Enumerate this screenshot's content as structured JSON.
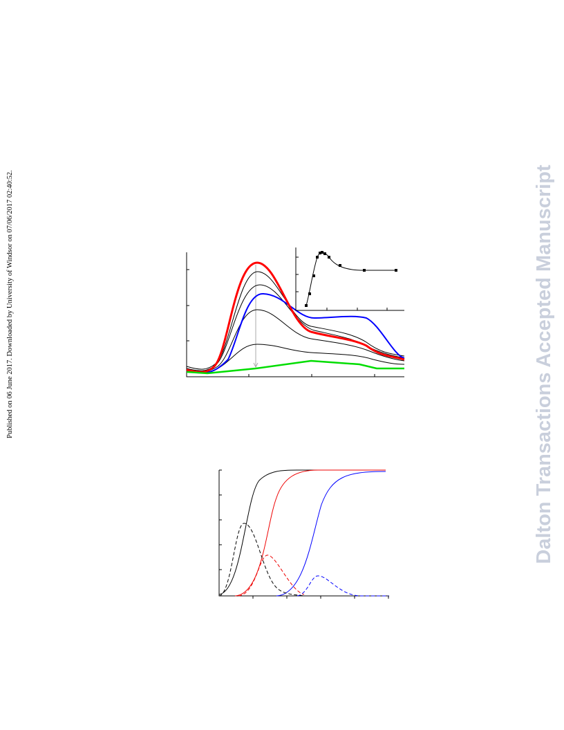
{
  "side_note": "Published on 06 June 2017. Downloaded by University of Windsor on 07/06/2017 02:40:52.",
  "watermark": "Dalton Transactions Accepted Manuscript"
}
